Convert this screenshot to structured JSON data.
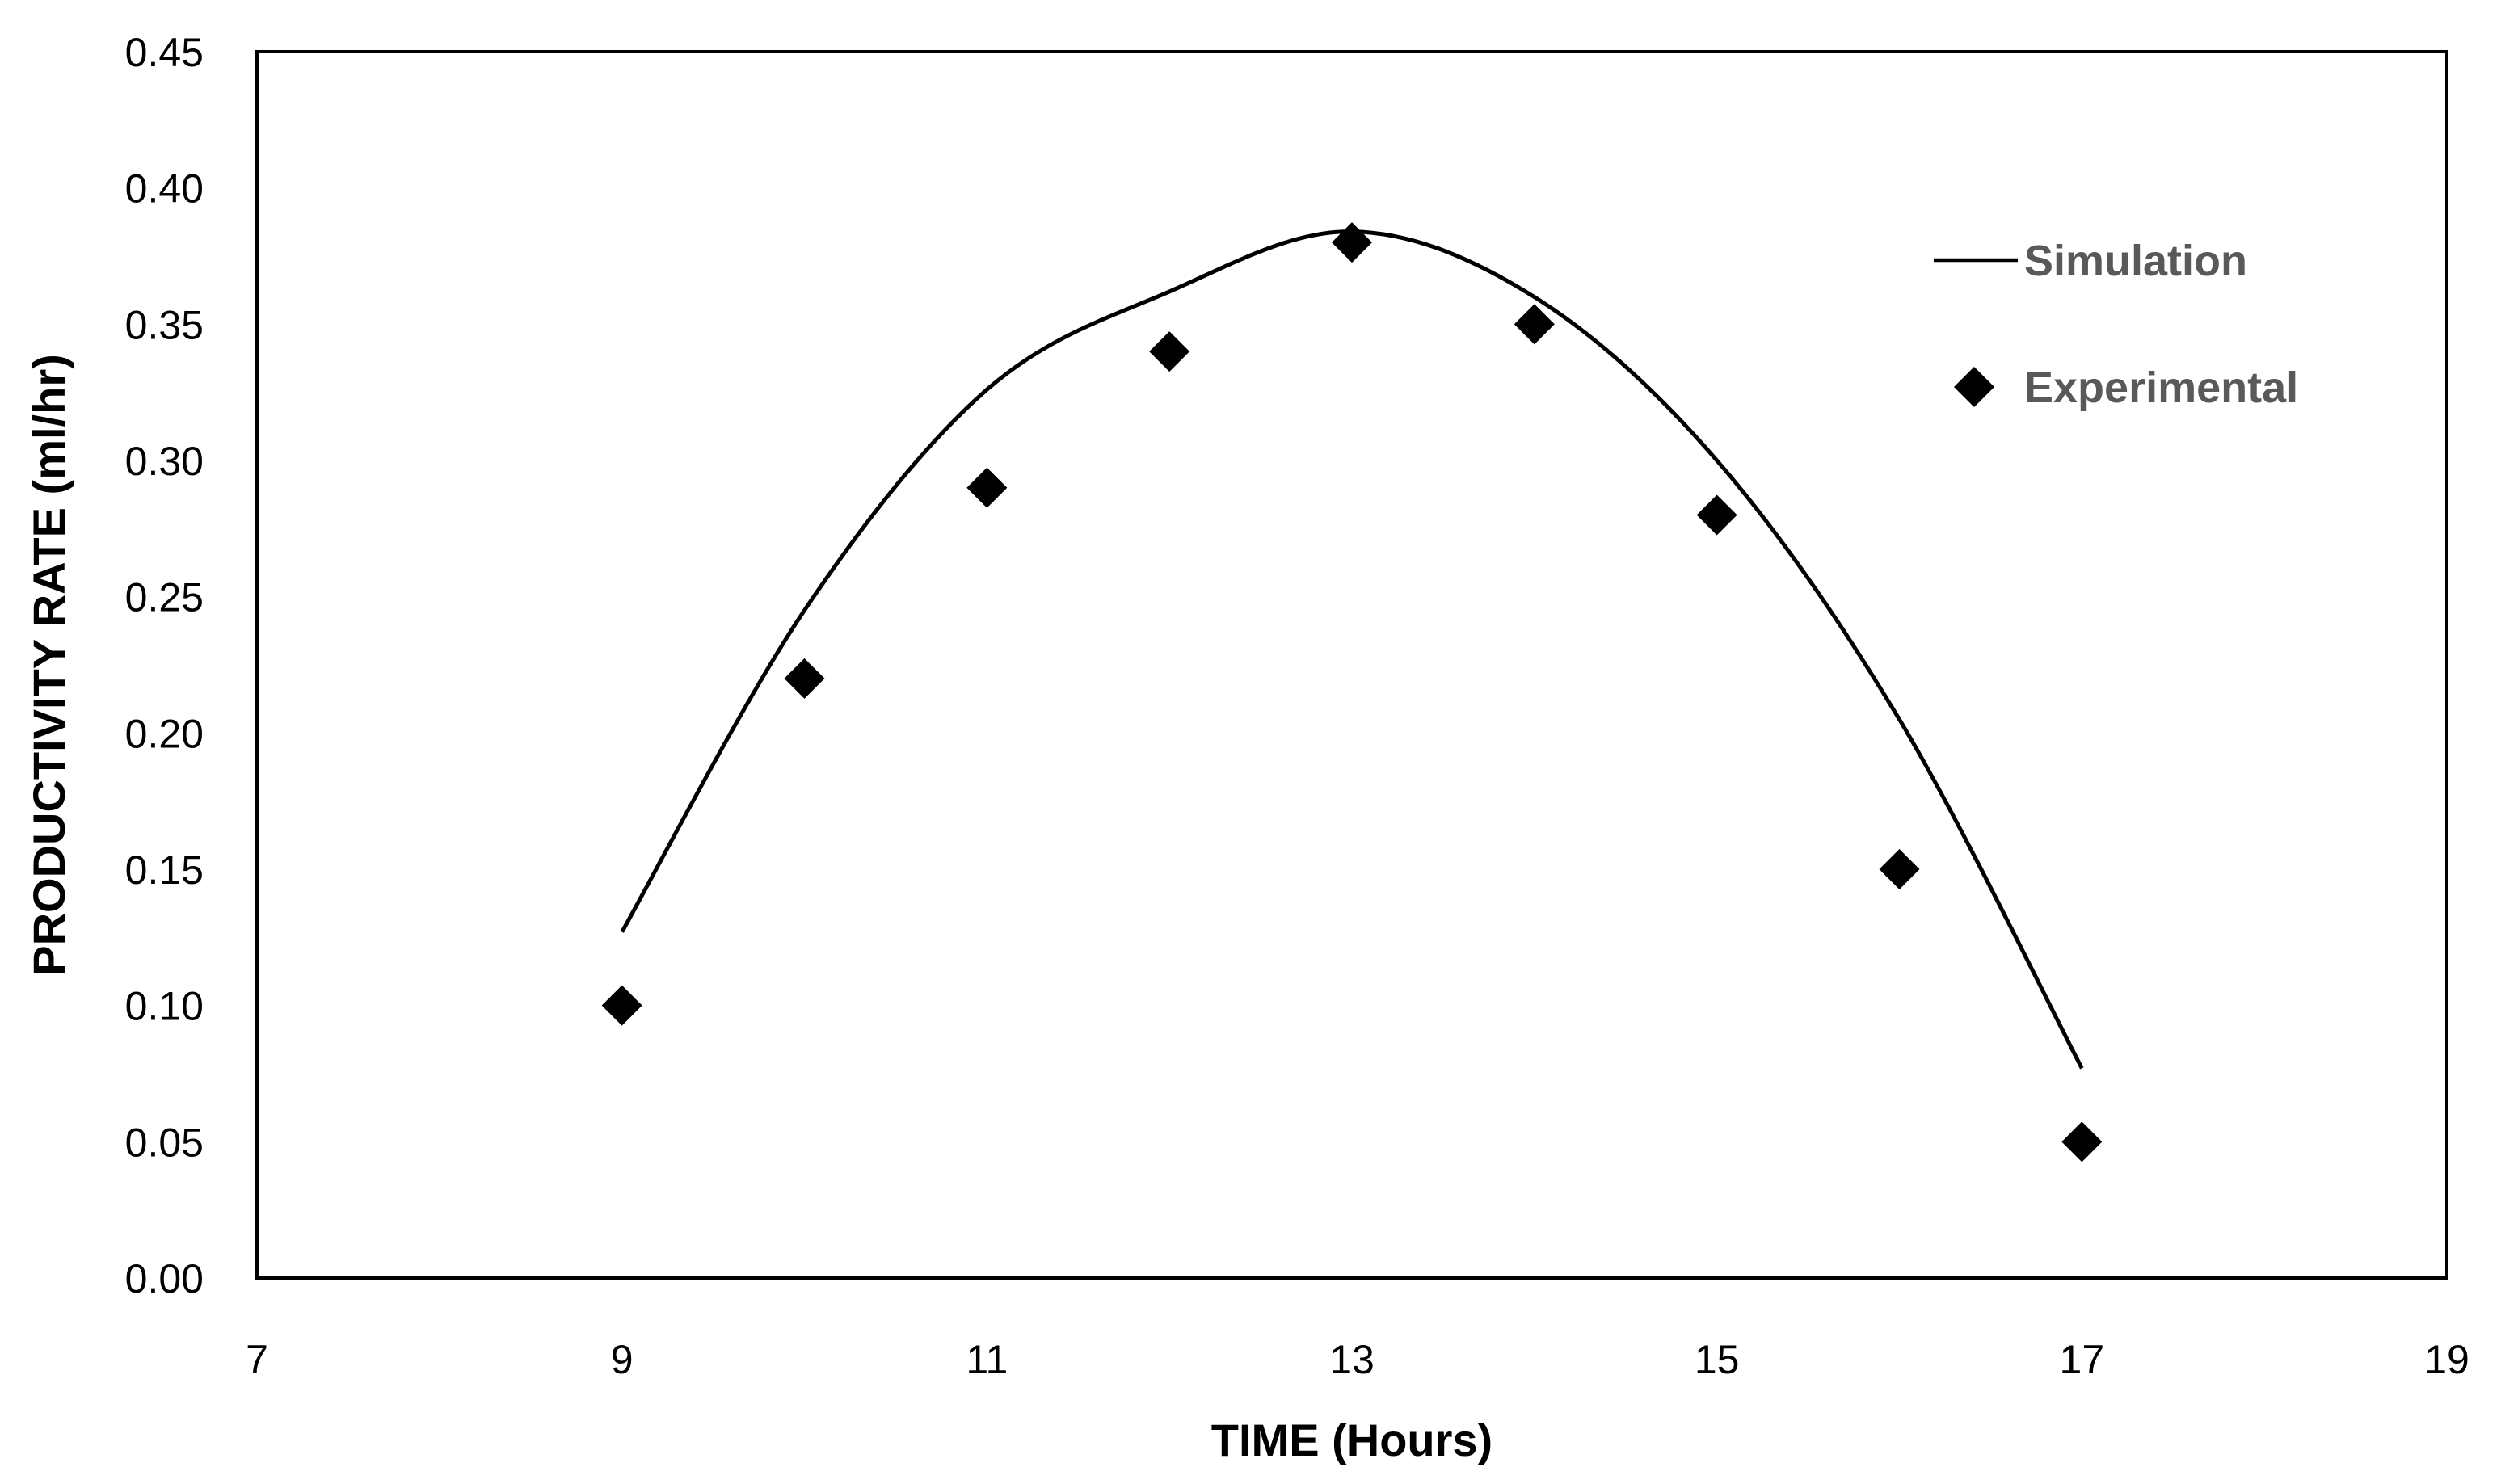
{
  "chart_data": {
    "type": "scatter",
    "xlabel": "TIME (Hours)",
    "ylabel": "PRODUCTIVITY RATE (ml/hr)",
    "xlim": [
      7,
      19
    ],
    "ylim": [
      0,
      0.45
    ],
    "xticks": [
      "7",
      "9",
      "11",
      "13",
      "15",
      "17",
      "19"
    ],
    "yticks": [
      "0.00",
      "0.05",
      "0.10",
      "0.15",
      "0.20",
      "0.25",
      "0.30",
      "0.35",
      "0.40",
      "0.45"
    ],
    "grid": false,
    "legend_position": "top-right",
    "series": [
      {
        "name": "Simulation",
        "kind": "line",
        "color": "#000000",
        "x": [
          9,
          10,
          11,
          12,
          13,
          14,
          15,
          16,
          17
        ],
        "y": [
          0.127,
          0.245,
          0.326,
          0.362,
          0.384,
          0.36,
          0.3,
          0.205,
          0.077
        ]
      },
      {
        "name": "Experimental",
        "kind": "marker",
        "marker": "diamond",
        "color": "#000000",
        "x": [
          9,
          10,
          11,
          12,
          13,
          14,
          15,
          16,
          17
        ],
        "y": [
          0.1,
          0.22,
          0.29,
          0.34,
          0.38,
          0.35,
          0.28,
          0.15,
          0.05
        ]
      }
    ]
  }
}
